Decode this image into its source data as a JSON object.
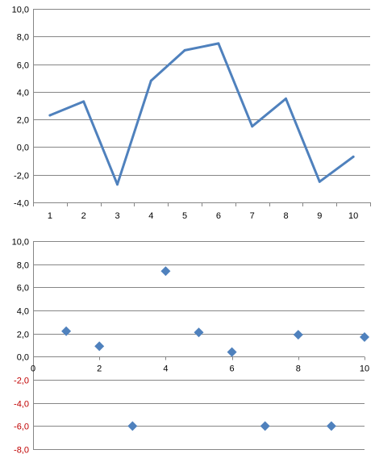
{
  "chart_data": [
    {
      "type": "line",
      "x": [
        1,
        2,
        3,
        4,
        5,
        6,
        7,
        8,
        9,
        10
      ],
      "series": [
        {
          "values": [
            2.3,
            3.3,
            -2.7,
            4.8,
            7.0,
            7.5,
            1.5,
            3.5,
            -2.5,
            -0.7
          ],
          "color": "#4F81BD"
        }
      ],
      "ylim": [
        -4,
        10
      ],
      "yticks": [
        "-4,0",
        "-2,0",
        "0,0",
        "2,0",
        "4,0",
        "6,0",
        "8,0",
        "10,0"
      ],
      "xticks": [
        "1",
        "2",
        "3",
        "4",
        "5",
        "6",
        "7",
        "8",
        "9",
        "10"
      ],
      "title": "",
      "xlabel": "",
      "ylabel": "",
      "grid": "horizontal",
      "legend": "none"
    },
    {
      "type": "scatter",
      "series": [
        {
          "x": [
            1,
            2,
            3,
            4,
            5,
            6,
            7,
            8,
            9,
            10
          ],
          "y": [
            2.2,
            0.9,
            -6.0,
            7.4,
            2.1,
            0.4,
            -6.0,
            1.9,
            -6.0,
            1.7
          ],
          "color": "#4F81BD",
          "marker": "diamond"
        }
      ],
      "xlim": [
        0,
        10
      ],
      "ylim": [
        -8,
        10
      ],
      "yticks": [
        "-8,0",
        "-6,0",
        "-4,0",
        "-2,0",
        "0,0",
        "2,0",
        "4,0",
        "6,0",
        "8,0",
        "10,0"
      ],
      "xticks": [
        "0",
        "2",
        "4",
        "6",
        "8",
        "10"
      ],
      "negative_tick_color": "#C00000",
      "title": "",
      "xlabel": "",
      "ylabel": "",
      "grid": "horizontal",
      "legend": "none"
    }
  ]
}
